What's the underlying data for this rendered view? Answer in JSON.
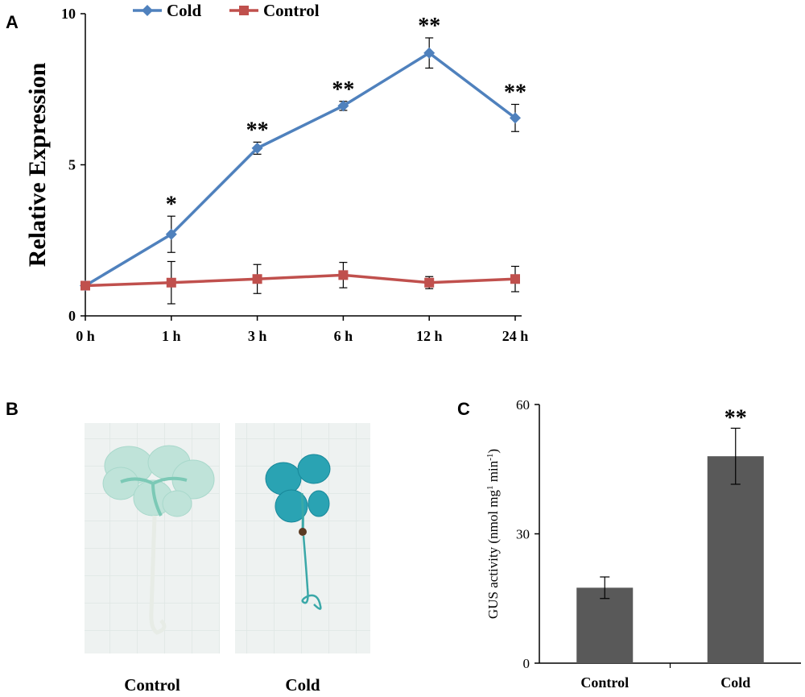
{
  "panels": {
    "a": "A",
    "b": "B",
    "c": "C"
  },
  "colors": {
    "cold": "#4F81BD",
    "control": "#C0504D",
    "bar": "#595959"
  },
  "chart_data": [
    {
      "type": "line",
      "ylabel": "Relative Expression",
      "xlabel": "",
      "categories": [
        "0 h",
        "1 h",
        "3 h",
        "6 h",
        "12 h",
        "24 h"
      ],
      "ylim": [
        0,
        10
      ],
      "yticks": [
        "0",
        "5",
        "10"
      ],
      "legend_position": "top",
      "series": [
        {
          "name": "Cold",
          "marker": "diamond",
          "values": [
            1.0,
            2.7,
            5.55,
            6.95,
            8.7,
            6.55
          ],
          "errors": [
            0.05,
            0.6,
            0.2,
            0.15,
            0.5,
            0.45
          ],
          "significance": [
            "",
            "*",
            "**",
            "**",
            "**",
            "**"
          ]
        },
        {
          "name": "Control",
          "marker": "square",
          "values": [
            1.0,
            1.1,
            1.22,
            1.35,
            1.1,
            1.22
          ],
          "errors": [
            0.05,
            0.7,
            0.48,
            0.42,
            0.2,
            0.42
          ]
        }
      ]
    },
    {
      "type": "bar",
      "ylabel": "GUS activity  (nmol mg-1 min-1)",
      "ylabel_parts": [
        "GUS activity  (nmol mg",
        "1",
        " min",
        "-1",
        ")"
      ],
      "categories": [
        "Control",
        "Cold"
      ],
      "values": [
        17.5,
        48.0
      ],
      "errors": [
        2.5,
        6.5
      ],
      "significance": [
        "",
        "**"
      ],
      "ylim": [
        0,
        60
      ],
      "yticks": [
        "0",
        "30",
        "60"
      ]
    }
  ],
  "photos": {
    "left_caption": "Control",
    "right_caption": "Cold"
  }
}
